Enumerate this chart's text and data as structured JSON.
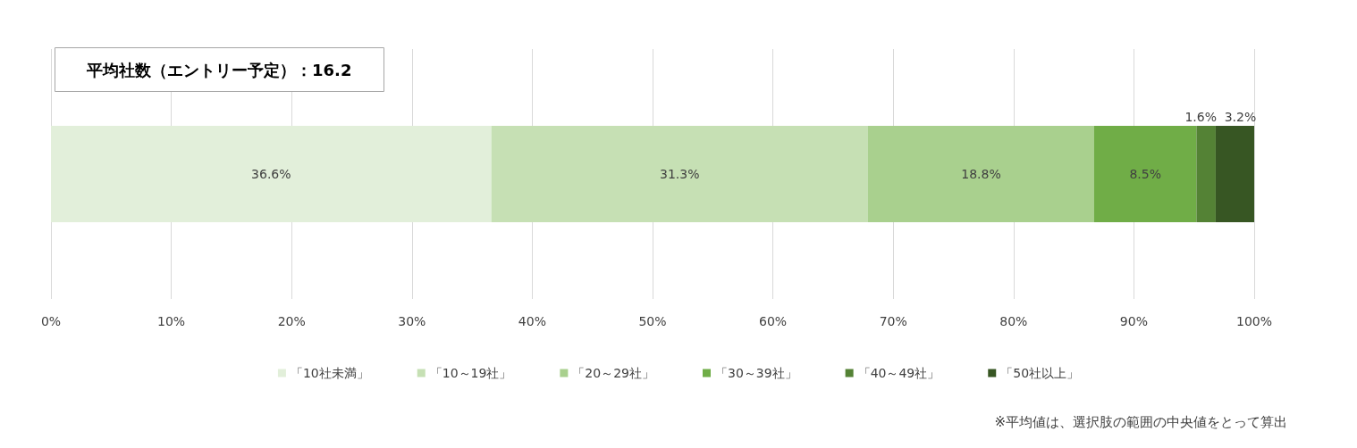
{
  "chart_data": {
    "type": "bar",
    "orientation": "horizontal",
    "stacked": true,
    "title": "平均社数（エントリー予定）：16.2",
    "categories": [
      null
    ],
    "series": [
      {
        "name": "「10社未満」",
        "color": "#e2efda",
        "values": [
          36.6
        ],
        "value_labels": [
          "36.6%"
        ]
      },
      {
        "name": "「10～19社」",
        "color": "#c6e0b4",
        "values": [
          31.3
        ],
        "value_labels": [
          "31.3%"
        ]
      },
      {
        "name": "「20～29社」",
        "color": "#a9d08e",
        "values": [
          18.8
        ],
        "value_labels": [
          "18.8%"
        ]
      },
      {
        "name": "「30～39社」",
        "color": "#70ad47",
        "values": [
          8.5
        ],
        "value_labels": [
          "8.5%"
        ]
      },
      {
        "name": "「40～49社」",
        "color": "#548235",
        "values": [
          1.6
        ],
        "value_labels": [
          "1.6%"
        ]
      },
      {
        "name": "「50社以上」",
        "color": "#375623",
        "values": [
          3.2
        ],
        "value_labels": [
          "3.2%"
        ]
      }
    ],
    "xlim": [
      0,
      100
    ],
    "xticks": [
      {
        "value": 0,
        "label": "0%"
      },
      {
        "value": 10,
        "label": "10%"
      },
      {
        "value": 20,
        "label": "20%"
      },
      {
        "value": 30,
        "label": "30%"
      },
      {
        "value": 40,
        "label": "40%"
      },
      {
        "value": 50,
        "label": "50%"
      },
      {
        "value": 60,
        "label": "60%"
      },
      {
        "value": 70,
        "label": "70%"
      },
      {
        "value": 80,
        "label": "80%"
      },
      {
        "value": 90,
        "label": "90%"
      },
      {
        "value": 100,
        "label": "100%"
      }
    ],
    "grid": "x",
    "legend": "bottom",
    "annotations": [
      "※平均値は、選択肢の範囲の中央値をとって算出"
    ]
  }
}
